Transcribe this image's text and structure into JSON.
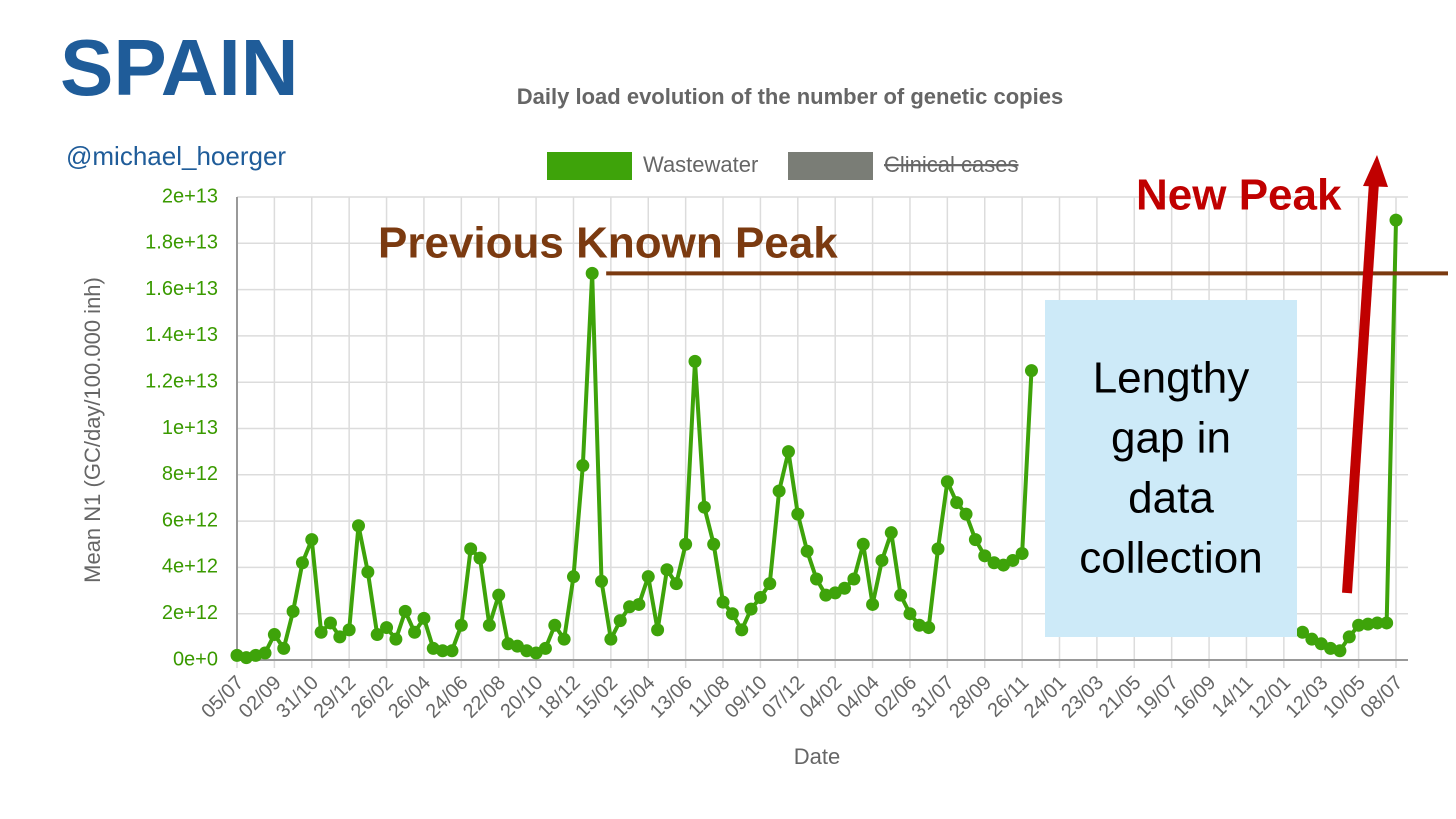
{
  "header": {
    "country": "SPAIN",
    "handle": "@michael_hoerger"
  },
  "chart_data": {
    "type": "line",
    "title": "Daily load evolution of the number of genetic copies",
    "x_label": "Date",
    "y_label": "Mean N1 (GC/day/100.000 inh)",
    "categories": [
      "05/07",
      null,
      null,
      null,
      "02/09",
      null,
      null,
      null,
      "31/10",
      null,
      null,
      null,
      "29/12",
      null,
      null,
      null,
      "26/02",
      null,
      null,
      null,
      "26/04",
      null,
      null,
      null,
      "24/06",
      null,
      null,
      null,
      "22/08",
      null,
      null,
      null,
      "20/10",
      null,
      null,
      null,
      "18/12",
      null,
      null,
      null,
      "15/02",
      null,
      null,
      null,
      "15/04",
      null,
      null,
      null,
      "13/06",
      null,
      null,
      null,
      "11/08",
      null,
      null,
      null,
      "09/10",
      null,
      null,
      null,
      "07/12",
      null,
      null,
      null,
      "04/02",
      null,
      null,
      null,
      "04/04",
      null,
      null,
      null,
      "02/06",
      null,
      null,
      null,
      "31/07",
      null,
      null,
      null,
      "28/09",
      null,
      null,
      null,
      "26/11",
      null,
      null,
      null,
      "24/01",
      null,
      null,
      null,
      "23/03",
      null,
      null,
      null,
      "21/05",
      null,
      null,
      null,
      "19/07",
      null,
      null,
      null,
      "16/09",
      null,
      null,
      null,
      "14/11",
      null,
      null,
      null,
      "12/01",
      null,
      null,
      null,
      "12/03",
      null,
      null,
      null,
      "10/05",
      null,
      null,
      null,
      "08/07"
    ],
    "series": [
      {
        "name": "Wastewater",
        "color": "#3ea30a",
        "values": [
          200000000000.0,
          100000000000.0,
          200000000000.0,
          300000000000.0,
          1100000000000.0,
          500000000000.0,
          2100000000000.0,
          4200000000000.0,
          5200000000000.0,
          1200000000000.0,
          1600000000000.0,
          1000000000000.0,
          1300000000000.0,
          5800000000000.0,
          3800000000000.0,
          1100000000000.0,
          1400000000000.0,
          900000000000.0,
          2100000000000.0,
          1200000000000.0,
          1800000000000.0,
          500000000000.0,
          400000000000.0,
          400000000000.0,
          1500000000000.0,
          4800000000000.0,
          4400000000000.0,
          1500000000000.0,
          2800000000000.0,
          700000000000.0,
          600000000000.0,
          400000000000.0,
          300000000000.0,
          500000000000.0,
          1500000000000.0,
          900000000000.0,
          3600000000000.0,
          8400000000000.0,
          16700000000000.0,
          3400000000000.0,
          900000000000.0,
          1700000000000.0,
          2300000000000.0,
          2400000000000.0,
          3600000000000.0,
          1300000000000.0,
          3900000000000.0,
          3300000000000.0,
          5000000000000.0,
          12900000000000.0,
          6600000000000.0,
          5000000000000.0,
          2500000000000.0,
          2000000000000.0,
          1300000000000.0,
          2200000000000.0,
          2700000000000.0,
          3300000000000.0,
          7300000000000.0,
          9000000000000.0,
          6300000000000.0,
          4700000000000.0,
          3500000000000.0,
          2800000000000.0,
          2900000000000.0,
          3100000000000.0,
          3500000000000.0,
          5000000000000.0,
          2400000000000.0,
          4300000000000.0,
          5500000000000.0,
          2800000000000.0,
          2000000000000.0,
          1500000000000.0,
          1400000000000.0,
          4800000000000.0,
          7700000000000.0,
          6800000000000.0,
          6300000000000.0,
          5200000000000.0,
          4500000000000.0,
          4200000000000.0,
          4100000000000.0,
          4300000000000.0,
          4600000000000.0,
          12500000000000.0,
          null,
          null,
          null,
          null,
          null,
          null,
          null,
          null,
          null,
          null,
          null,
          null,
          null,
          null,
          null,
          null,
          null,
          null,
          null,
          null,
          null,
          null,
          null,
          null,
          null,
          null,
          null,
          null,
          1200000000000.0,
          900000000000.0,
          700000000000.0,
          500000000000.0,
          400000000000.0,
          1000000000000.0,
          1500000000000.0,
          1550000000000.0,
          1600000000000.0,
          1600000000000.0,
          19000000000000.0
        ]
      },
      {
        "name": "Clinical cases",
        "color": "#7a7d76",
        "hidden": true
      }
    ],
    "ylim": [
      0,
      20000000000000.0
    ],
    "yticks": [
      {
        "value": 0,
        "label": "0e+0"
      },
      {
        "value": 2000000000000.0,
        "label": "2e+12"
      },
      {
        "value": 4000000000000.0,
        "label": "4e+12"
      },
      {
        "value": 6000000000000.0,
        "label": "6e+12"
      },
      {
        "value": 8000000000000.0,
        "label": "8e+12"
      },
      {
        "value": 10000000000000.0,
        "label": "1e+13"
      },
      {
        "value": 12000000000000.0,
        "label": "1.2e+13"
      },
      {
        "value": 14000000000000.0,
        "label": "1.4e+13"
      },
      {
        "value": 16000000000000.0,
        "label": "1.6e+13"
      },
      {
        "value": 18000000000000.0,
        "label": "1.8e+13"
      },
      {
        "value": 20000000000000.0,
        "label": "2e+13"
      }
    ],
    "grid": true,
    "annotations": {
      "previous_peak": "Previous Known Peak",
      "new_peak": "New Peak",
      "gap_note": [
        "Lengthy",
        "gap in",
        "data",
        "collection"
      ]
    }
  }
}
